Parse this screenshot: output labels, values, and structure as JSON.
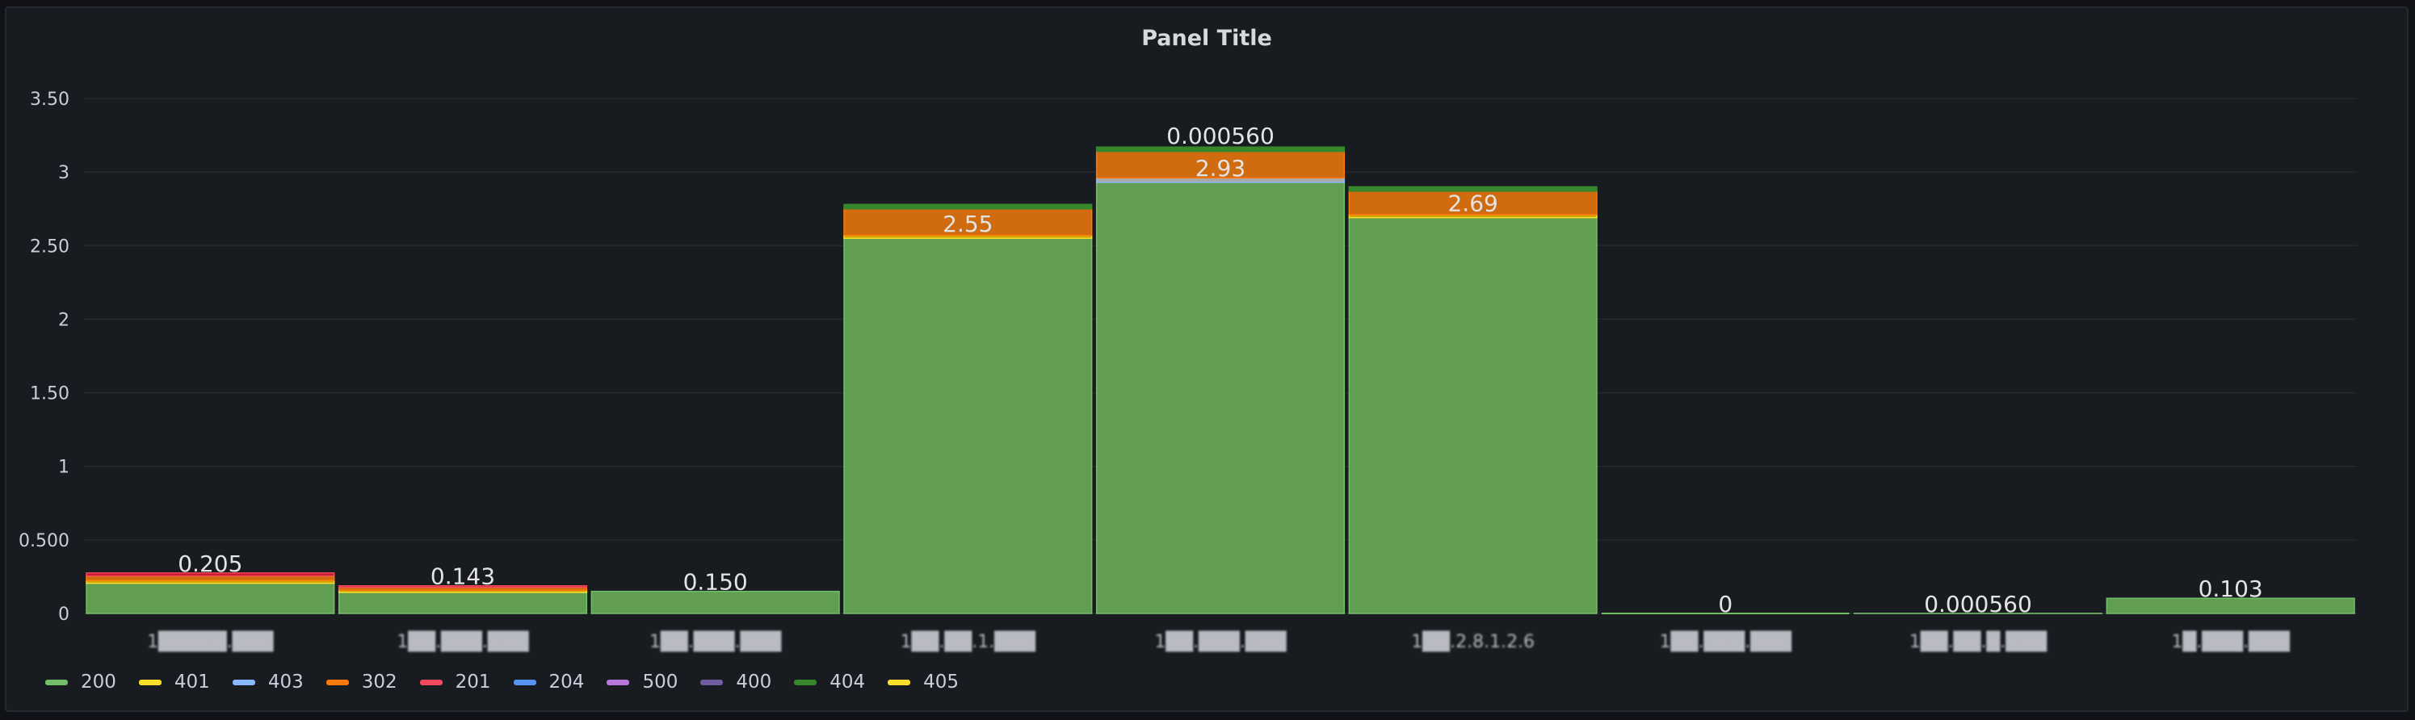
{
  "panel": {
    "title": "Panel Title"
  },
  "chart_data": {
    "type": "bar",
    "stacked": true,
    "title": "Panel Title",
    "ylim": [
      0,
      3.5
    ],
    "yticks": [
      "0",
      "0.500",
      "1",
      "1.50",
      "2",
      "2.50",
      "3",
      "3.50"
    ],
    "ytick_values": [
      0,
      0.5,
      1,
      1.5,
      2,
      2.5,
      3,
      3.5
    ],
    "grid": true,
    "legend_position": "bottom-left",
    "categories": [
      "1█████.███",
      "1██.███.███",
      "1██.███.███",
      "1██.██.1.███",
      "1██.███.███",
      "1██.2.8.1.2.6",
      "1██.███.███",
      "1██.██.█.███",
      "1█.███.███"
    ],
    "data_labels": [
      "0.205",
      "0.143",
      "0.150",
      "2.55",
      "2.93",
      "2.69",
      "0",
      "0.000560",
      "0.103"
    ],
    "extra_labels": [
      {
        "category_index": 4,
        "text": "0.000560"
      }
    ],
    "series": [
      {
        "name": "200",
        "color": "#73bf69",
        "values": [
          0.205,
          0.143,
          0.15,
          2.55,
          2.93,
          2.69,
          0,
          0.00056,
          0.103
        ]
      },
      {
        "name": "401",
        "color": "#fade2a",
        "values": [
          0.02,
          0.015,
          0,
          0.02,
          0,
          0.02,
          0,
          0,
          0
        ]
      },
      {
        "name": "403",
        "color": "#8ab8ff",
        "values": [
          0,
          0,
          0,
          0,
          0.03,
          0,
          0,
          0,
          0
        ]
      },
      {
        "name": "302",
        "color": "#ff780a",
        "values": [
          0.03,
          0.02,
          0,
          0.18,
          0.18,
          0.16,
          0,
          0,
          0
        ]
      },
      {
        "name": "201",
        "color": "#f2495c",
        "values": [
          0.02,
          0.01,
          0,
          0,
          0,
          0,
          0,
          0,
          0
        ]
      },
      {
        "name": "204",
        "color": "#5794f2",
        "values": [
          0,
          0,
          0,
          0,
          0,
          0,
          0,
          0,
          0
        ]
      },
      {
        "name": "500",
        "color": "#b877d9",
        "values": [
          0,
          0,
          0,
          0,
          0,
          0,
          0,
          0,
          0
        ]
      },
      {
        "name": "400",
        "color": "#705da0",
        "values": [
          0,
          0,
          0,
          0,
          0,
          0,
          0,
          0,
          0
        ]
      },
      {
        "name": "404",
        "color": "#37872d",
        "values": [
          0,
          0,
          0,
          0.03,
          0.03,
          0.03,
          0,
          0,
          0
        ]
      },
      {
        "name": "405",
        "color": "#fade2a",
        "values": [
          0,
          0,
          0,
          0,
          0,
          0,
          0,
          0,
          0
        ]
      }
    ],
    "fill_colors": {
      "200": "#629e51",
      "401": "#cca300",
      "403": "#a9a9a9",
      "302": "#d16b10",
      "201": "#c4162a",
      "404": "#37872d"
    }
  }
}
